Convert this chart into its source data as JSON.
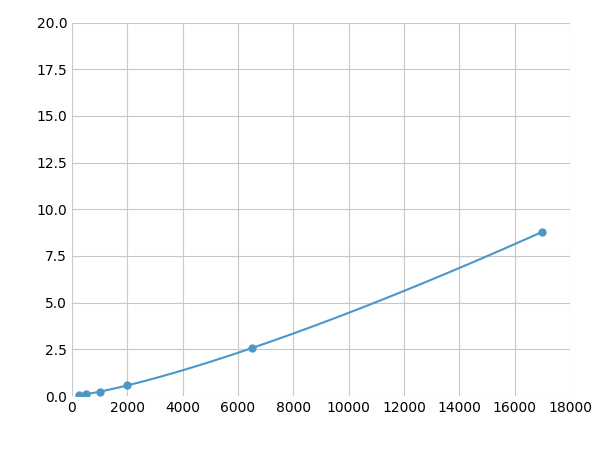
{
  "x_points": [
    250,
    500,
    1000,
    2000,
    6500,
    17000
  ],
  "y_points": [
    0.05,
    0.1,
    0.15,
    0.6,
    2.5,
    10.0
  ],
  "marker_x": [
    250,
    500,
    1000,
    2000,
    6500,
    17000
  ],
  "line_color": "#4d96c9",
  "marker_color": "#4d96c9",
  "marker_size": 6,
  "xlim": [
    0,
    18000
  ],
  "ylim": [
    0,
    20.0
  ],
  "xticks": [
    0,
    2000,
    4000,
    6000,
    8000,
    10000,
    12000,
    14000,
    16000,
    18000
  ],
  "yticks": [
    0.0,
    2.5,
    5.0,
    7.5,
    10.0,
    12.5,
    15.0,
    17.5,
    20.0
  ],
  "grid_color": "#c8c8c8",
  "background_color": "#ffffff",
  "tick_label_fontsize": 10,
  "figsize": [
    6.0,
    4.5
  ],
  "dpi": 100
}
